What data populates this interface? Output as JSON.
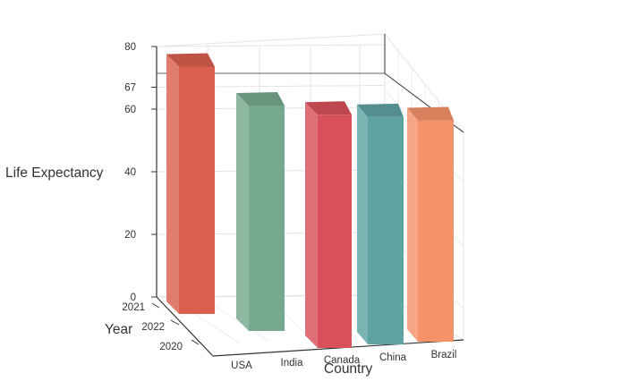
{
  "chart_data": {
    "type": "bar",
    "render": "3d",
    "title": "",
    "xlabel": "Country",
    "ylabel": "Year",
    "zlabel": "Life Expectancy",
    "categories": [
      "USA",
      "India",
      "Canada",
      "China",
      "Brazil"
    ],
    "year_ticks": [
      "2021",
      "2022",
      "2020"
    ],
    "z_ticks": [
      "0",
      "20",
      "40",
      "60",
      "67",
      "80"
    ],
    "zlim": [
      0,
      80
    ],
    "bars": [
      {
        "country": "USA",
        "year": "2021",
        "value": 79,
        "color": "#d9604f"
      },
      {
        "country": "India",
        "year": "2022",
        "value": 70,
        "color": "#77a98f"
      },
      {
        "country": "Canada",
        "year": "2020",
        "value": 82,
        "color": "#d7505a"
      },
      {
        "country": "China",
        "year": "2020",
        "value": 77,
        "color": "#5fa3a3"
      },
      {
        "country": "Brazil",
        "year": "2020",
        "value": 75,
        "color": "#f4936a"
      }
    ],
    "grid": true,
    "legend": "none"
  }
}
